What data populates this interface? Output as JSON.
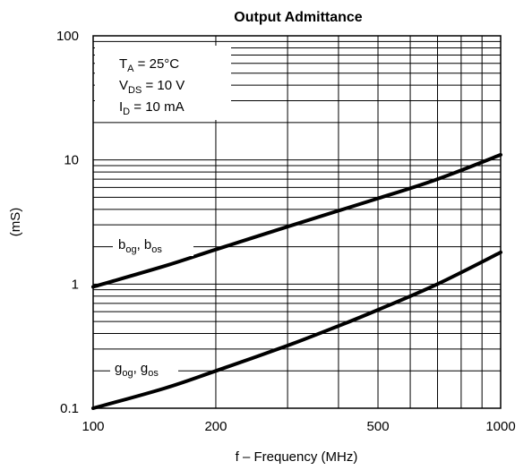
{
  "chart_data": {
    "type": "line",
    "title": "Output Admittance",
    "xlabel": "f – Frequency (MHz)",
    "ylabel": "(mS)",
    "x_scale": "log",
    "y_scale": "log",
    "xlim": [
      100,
      1000
    ],
    "ylim": [
      0.1,
      100
    ],
    "x_ticks": [
      "100",
      "200",
      "500",
      "1000"
    ],
    "y_ticks": [
      "0.1",
      "1",
      "10",
      "100"
    ],
    "grid": true,
    "conditions": {
      "ta": {
        "main": "T",
        "sub": "A",
        "rest": " = 25°C"
      },
      "vds": {
        "main": "V",
        "sub": "DS",
        "rest": " = 10 V"
      },
      "id": {
        "main": "I",
        "sub": "D",
        "rest": " = 10 mA"
      }
    },
    "series": [
      {
        "label": {
          "a": "b",
          "a_sub": "og",
          "sep": ", b",
          "b_sub": "os"
        },
        "x": [
          100,
          150,
          200,
          300,
          400,
          500,
          700,
          1000
        ],
        "y": [
          0.95,
          1.4,
          1.9,
          2.9,
          3.9,
          4.9,
          7.0,
          11.0
        ]
      },
      {
        "label": {
          "a": "g",
          "a_sub": "og",
          "sep": ", g",
          "b_sub": "os"
        },
        "x": [
          100,
          150,
          200,
          300,
          400,
          500,
          700,
          1000
        ],
        "y": [
          0.1,
          0.145,
          0.2,
          0.32,
          0.46,
          0.62,
          1.0,
          1.8
        ]
      }
    ]
  }
}
